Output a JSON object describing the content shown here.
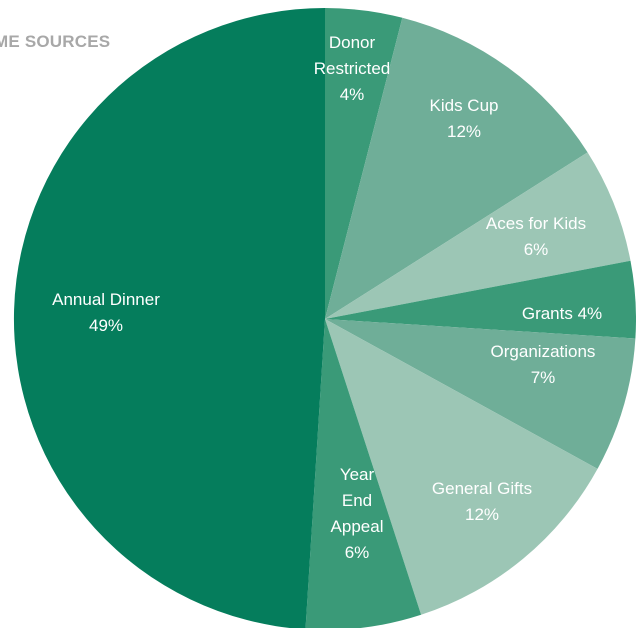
{
  "title": "ME SOURCES",
  "colors": {
    "dark": "#057d5c",
    "mid": "#3a9a78",
    "light": "#6fae98",
    "pale": "#9cc6b5"
  },
  "chart_data": {
    "type": "pie",
    "start_angle": "12 o'clock",
    "direction": "clockwise",
    "slices": [
      {
        "lines": [
          "Donor",
          "Restricted",
          "4%"
        ],
        "value": 4,
        "color": "#3a9a78"
      },
      {
        "lines": [
          "Kids Cup",
          "12%"
        ],
        "value": 12,
        "color": "#6fae98"
      },
      {
        "lines": [
          "Aces for Kids",
          "6%"
        ],
        "value": 6,
        "color": "#9cc6b5"
      },
      {
        "lines": [
          "Grants 4%"
        ],
        "value": 4,
        "color": "#3a9a78"
      },
      {
        "lines": [
          "Organizations",
          "7%"
        ],
        "value": 7,
        "color": "#6fae98"
      },
      {
        "lines": [
          "General  Gifts",
          "12%"
        ],
        "value": 12,
        "color": "#9cc6b5"
      },
      {
        "lines": [
          "Year",
          "End",
          "Appeal",
          "6%"
        ],
        "value": 6,
        "color": "#3a9a78"
      },
      {
        "lines": [
          "Annual Dinner",
          "49%"
        ],
        "value": 49,
        "color": "#057d5c"
      }
    ]
  }
}
